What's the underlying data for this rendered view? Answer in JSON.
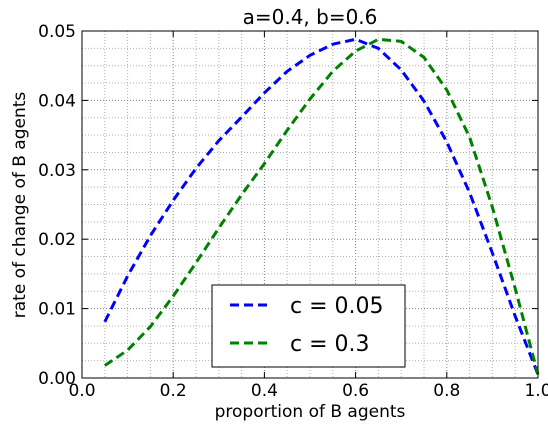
{
  "chart_data": {
    "type": "line",
    "title": "a=0.4, b=0.6",
    "xlabel": "proportion of B agents",
    "ylabel": "rate of change of B agents",
    "xlim": [
      0.0,
      1.0
    ],
    "ylim": [
      0.0,
      0.05
    ],
    "xticks": [
      "0.0",
      "0.2",
      "0.4",
      "0.6",
      "0.8",
      "1.0"
    ],
    "yticks": [
      "0.00",
      "0.01",
      "0.02",
      "0.03",
      "0.04",
      "0.05"
    ],
    "grid": true,
    "legend_position": "bottom-center",
    "series": [
      {
        "name": "c = 0.05",
        "color": "#0000ff",
        "style": "dashed",
        "x": [
          0.05,
          0.1,
          0.15,
          0.2,
          0.25,
          0.3,
          0.35,
          0.4,
          0.45,
          0.5,
          0.55,
          0.6,
          0.65,
          0.7,
          0.75,
          0.8,
          0.85,
          0.9,
          0.95,
          1.0
        ],
        "y": [
          0.0081,
          0.0147,
          0.0205,
          0.0256,
          0.0302,
          0.0342,
          0.0376,
          0.0411,
          0.0442,
          0.0465,
          0.0481,
          0.0488,
          0.0475,
          0.0444,
          0.0399,
          0.034,
          0.0267,
          0.018,
          0.0089,
          0.0005
        ]
      },
      {
        "name": "c = 0.3",
        "color": "#008000",
        "style": "dashed",
        "x": [
          0.05,
          0.1,
          0.15,
          0.2,
          0.25,
          0.3,
          0.35,
          0.4,
          0.45,
          0.5,
          0.55,
          0.6,
          0.65,
          0.7,
          0.75,
          0.8,
          0.85,
          0.9,
          0.95,
          1.0
        ],
        "y": [
          0.0018,
          0.004,
          0.0074,
          0.0118,
          0.0166,
          0.0216,
          0.0264,
          0.0309,
          0.0357,
          0.0402,
          0.0442,
          0.0471,
          0.0488,
          0.0485,
          0.0462,
          0.0415,
          0.0347,
          0.0246,
          0.0129,
          0.0005
        ]
      }
    ]
  }
}
